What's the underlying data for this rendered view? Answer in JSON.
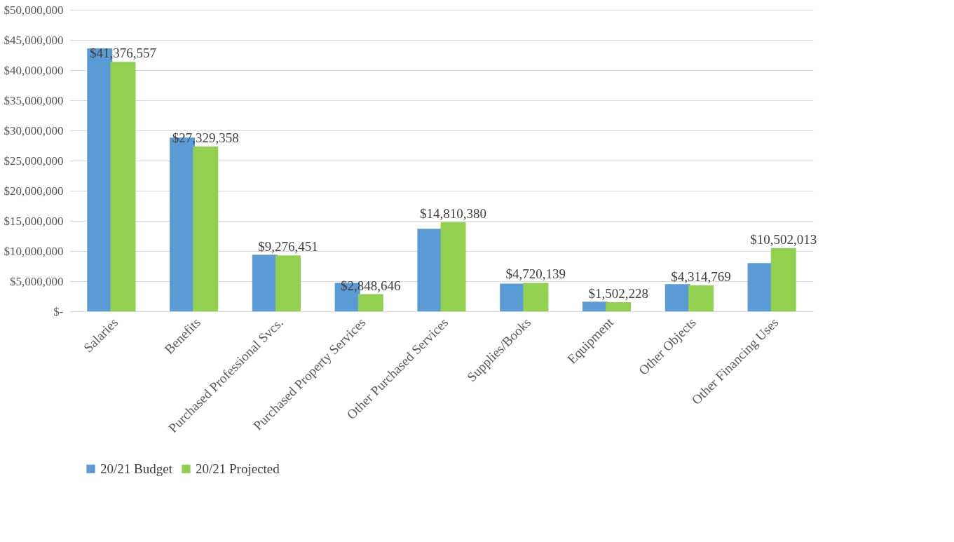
{
  "chart_data": {
    "type": "bar",
    "categories": [
      "Salaries",
      "Benefits",
      "Purchased Professional Svcs.",
      "Purchased Property Services",
      "Other Purchased Services",
      "Supplies/Books",
      "Equipment",
      "Other Objects",
      "Other Financing Uses"
    ],
    "series": [
      {
        "name": "20/21 Budget",
        "color": "#5b9bd5",
        "values": [
          43600000,
          28800000,
          9400000,
          4700000,
          13700000,
          4600000,
          1600000,
          4500000,
          8000000
        ]
      },
      {
        "name": "20/21 Projected",
        "color": "#92d050",
        "values": [
          41376557,
          27329358,
          9276451,
          2848646,
          14810380,
          4720139,
          1502228,
          4314769,
          10502013
        ],
        "value_labels": [
          "$41,376,557",
          "$27,329,358",
          "$9,276,451",
          "$2,848,646",
          "$14,810,380",
          "$4,720,139",
          "$1,502,228",
          "$4,314,769",
          "$10,502,013"
        ]
      }
    ],
    "ylim": [
      0,
      50000000
    ],
    "yticks": [
      {
        "value": 0,
        "label": "$-"
      },
      {
        "value": 5000000,
        "label": "$5,000,000"
      },
      {
        "value": 10000000,
        "label": "$10,000,000"
      },
      {
        "value": 15000000,
        "label": "$15,000,000"
      },
      {
        "value": 20000000,
        "label": "$20,000,000"
      },
      {
        "value": 25000000,
        "label": "$25,000,000"
      },
      {
        "value": 30000000,
        "label": "$30,000,000"
      },
      {
        "value": 35000000,
        "label": "$35,000,000"
      },
      {
        "value": 40000000,
        "label": "$40,000,000"
      },
      {
        "value": 45000000,
        "label": "$45,000,000"
      },
      {
        "value": 50000000,
        "label": "$50,000,000"
      }
    ],
    "grid": "y",
    "legend": "bottom"
  }
}
